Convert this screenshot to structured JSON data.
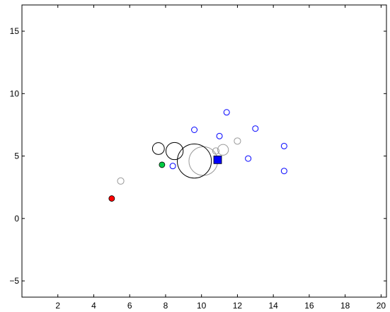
{
  "chart_data": {
    "type": "scatter",
    "title": "",
    "xlabel": "",
    "ylabel": "",
    "xlim": [
      0,
      20.3
    ],
    "ylim": [
      -6.3,
      17.1
    ],
    "xticks": [
      2,
      4,
      6,
      8,
      10,
      12,
      14,
      16,
      18,
      20
    ],
    "yticks": [
      -5,
      0,
      5,
      10,
      15
    ],
    "xtick_labels": [
      "2",
      "4",
      "6",
      "8",
      "10",
      "12",
      "14",
      "16",
      "18",
      "20"
    ],
    "ytick_labels": [
      "−5",
      "0",
      "5",
      "10",
      "15"
    ],
    "grid": false,
    "legend": "none",
    "series": [
      {
        "marker": "circle-open",
        "color": "#0000ff",
        "size": "small",
        "points": [
          {
            "x": 8.4,
            "y": 4.2
          },
          {
            "x": 9.6,
            "y": 7.1
          },
          {
            "x": 11.0,
            "y": 6.6
          },
          {
            "x": 11.4,
            "y": 8.5
          },
          {
            "x": 12.6,
            "y": 4.8
          },
          {
            "x": 13.0,
            "y": 7.2
          },
          {
            "x": 14.6,
            "y": 5.8
          },
          {
            "x": 14.6,
            "y": 3.8
          }
        ]
      },
      {
        "marker": "circle-open",
        "color": "#999999",
        "points": [
          {
            "x": 5.5,
            "y": 3.0,
            "r": 0.18
          },
          {
            "x": 10.1,
            "y": 4.6,
            "r": 0.8
          },
          {
            "x": 10.8,
            "y": 5.4,
            "r": 0.18
          },
          {
            "x": 11.2,
            "y": 5.5,
            "r": 0.3
          },
          {
            "x": 12.0,
            "y": 6.2,
            "r": 0.18
          }
        ]
      },
      {
        "marker": "circle-open",
        "color": "#000000",
        "points": [
          {
            "x": 7.6,
            "y": 5.6,
            "r": 0.33
          },
          {
            "x": 8.5,
            "y": 5.4,
            "r": 0.48
          },
          {
            "x": 9.6,
            "y": 4.6,
            "r": 0.95
          }
        ]
      },
      {
        "marker": "circle-filled",
        "color": "#ff0000",
        "points": [
          {
            "x": 5.0,
            "y": 1.6
          }
        ]
      },
      {
        "marker": "circle-filled",
        "color": "#00cc44",
        "points": [
          {
            "x": 7.8,
            "y": 4.3
          }
        ]
      },
      {
        "marker": "square-filled",
        "color": "#0000ff",
        "points": [
          {
            "x": 10.9,
            "y": 4.7
          }
        ]
      }
    ]
  }
}
